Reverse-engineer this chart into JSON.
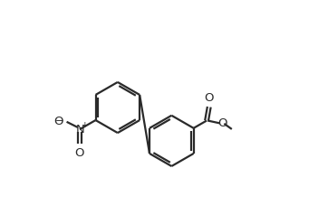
{
  "bg_color": "#ffffff",
  "line_color": "#2a2a2a",
  "line_width": 1.6,
  "dbo": 0.012,
  "shrink": 0.12,
  "r1cx": 0.285,
  "r1cy": 0.5,
  "r2cx": 0.535,
  "r2cy": 0.345,
  "ring_r": 0.118,
  "ao": 0,
  "nitro_text_size": 9.5,
  "ester_text_size": 9.5
}
